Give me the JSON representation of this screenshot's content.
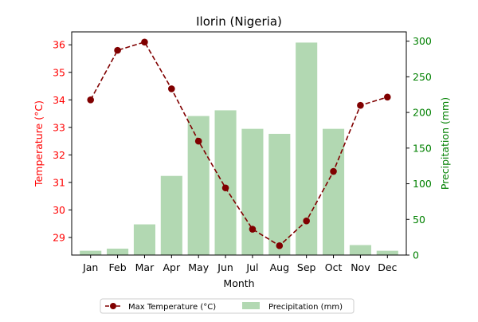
{
  "chart_data": {
    "type": "bar+line",
    "title": "Ilorin (Nigeria)",
    "xlabel": "Month",
    "ylabel_left": "Temperature (°C)",
    "ylabel_right": "Precipitation (mm)",
    "categories": [
      "Jan",
      "Feb",
      "Mar",
      "Apr",
      "May",
      "Jun",
      "Jul",
      "Aug",
      "Sep",
      "Oct",
      "Nov",
      "Dec"
    ],
    "series": [
      {
        "name": "Max Temperature (°C)",
        "kind": "line",
        "axis": "left",
        "color": "#800000",
        "values": [
          34.0,
          35.8,
          36.1,
          34.4,
          32.5,
          30.8,
          29.3,
          28.7,
          29.6,
          31.4,
          33.8,
          34.1
        ]
      },
      {
        "name": "Precipitation (mm)",
        "kind": "bar",
        "axis": "right",
        "color": "#b2d8b2",
        "values": [
          6,
          9,
          43,
          111,
          195,
          203,
          177,
          170,
          298,
          177,
          14,
          6
        ]
      }
    ],
    "ylim_left": [
      28.36,
      36.47
    ],
    "yticks_left": [
      "29",
      "30",
      "31",
      "32",
      "33",
      "34",
      "35",
      "36"
    ],
    "ylim_right": [
      0,
      313
    ],
    "yticks_right": [
      "0",
      "50",
      "100",
      "150",
      "200",
      "250",
      "300"
    ],
    "left_axis_color": "#ff0000",
    "right_axis_color": "#008000",
    "grid": false,
    "legend_position": "bottom-center"
  }
}
